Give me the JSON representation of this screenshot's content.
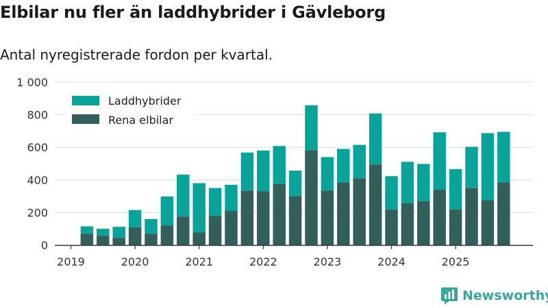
{
  "title": "Elbilar nu fler än laddhybrider i Gävleborg",
  "subtitle": "Antal nyregistrerade fordon per kvartal.",
  "brand": "Newsworthy",
  "colors": {
    "hybrid": "#0aa39a",
    "electric": "#335f5b",
    "grid": "#dddddd",
    "axis": "#333333",
    "brand": "#3aa59a"
  },
  "chart_data": {
    "type": "bar",
    "stacked": true,
    "ylim": [
      0,
      1000
    ],
    "yticks": [
      0,
      200,
      400,
      600,
      800,
      1000
    ],
    "ytick_labels": [
      "0",
      "200",
      "400",
      "600",
      "800",
      "1 000"
    ],
    "xtick_labels": [
      "2019",
      "2020",
      "2021",
      "2022",
      "2023",
      "2024",
      "2025"
    ],
    "xtick_positions": [
      0,
      4,
      8,
      12,
      16,
      20,
      24
    ],
    "categories": [
      "2019 Q2",
      "2019 Q3",
      "2019 Q4",
      "2020 Q1",
      "2020 Q2",
      "2020 Q3",
      "2020 Q4",
      "2021 Q1",
      "2021 Q2",
      "2021 Q3",
      "2021 Q4",
      "2022 Q1",
      "2022 Q2",
      "2022 Q3",
      "2022 Q4",
      "2023 Q1",
      "2023 Q2",
      "2023 Q3",
      "2023 Q4",
      "2024 Q1",
      "2024 Q2",
      "2024 Q3",
      "2024 Q4",
      "2025 Q1",
      "2025 Q2",
      "2025 Q3",
      "2025 Q4"
    ],
    "first_index": 1,
    "legend": [
      "Laddhybrider",
      "Rena elbilar"
    ],
    "series": [
      {
        "name": "Rena elbilar",
        "values": [
          70,
          57,
          45,
          110,
          70,
          120,
          175,
          78,
          180,
          210,
          335,
          330,
          375,
          300,
          583,
          335,
          385,
          410,
          495,
          218,
          258,
          270,
          340,
          218,
          350,
          275,
          385
        ]
      },
      {
        "name": "Laddhybrider",
        "values": [
          45,
          43,
          67,
          105,
          90,
          178,
          257,
          302,
          170,
          160,
          233,
          250,
          233,
          157,
          275,
          205,
          205,
          205,
          313,
          205,
          253,
          228,
          352,
          248,
          253,
          412,
          310
        ]
      }
    ]
  }
}
